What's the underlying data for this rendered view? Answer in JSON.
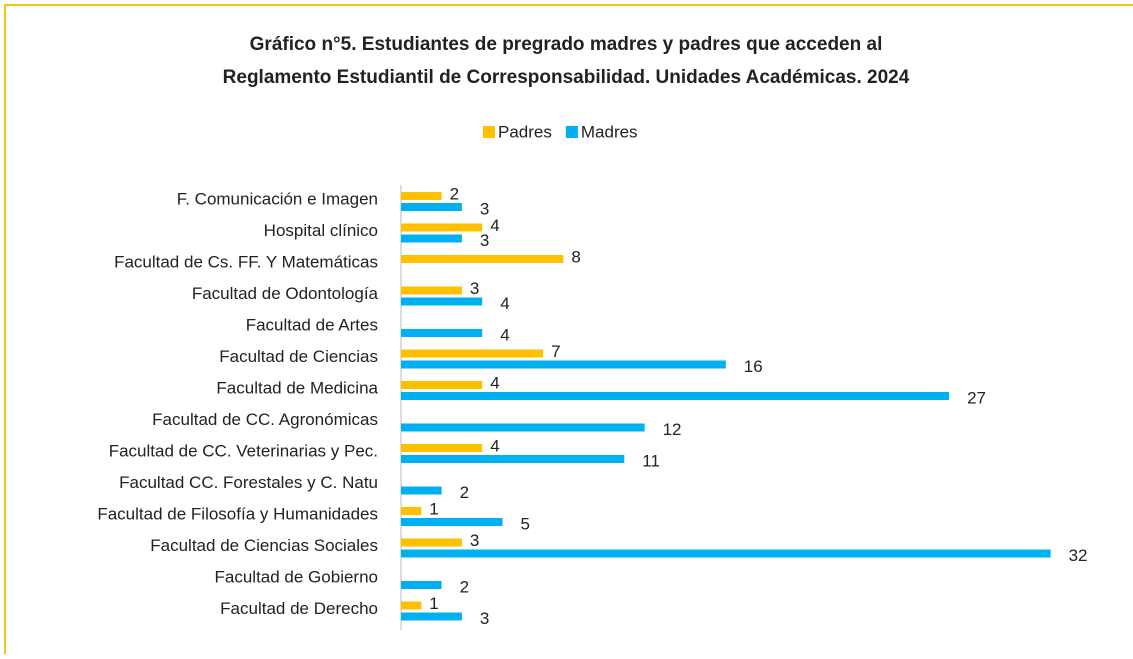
{
  "chart_data": {
    "type": "bar",
    "orientation": "horizontal",
    "title": [
      "Gráfico n°5. Estudiantes de pregrado madres y padres que acceden al",
      "Reglamento Estudiantil de Corresponsabilidad. Unidades Académicas. 2024"
    ],
    "categories": [
      "F. Comunicación e Imagen",
      "Hospital clínico",
      "Facultad de Cs. FF. Y Matemáticas",
      "Facultad de Odontología",
      "Facultad de Artes",
      "Facultad de Ciencias ",
      "Facultad de Medicina",
      "Facultad de CC. Agronómicas",
      "Facultad de CC. Veterinarias  y Pec.",
      "Facultad CC. Forestales y C. Natu",
      "Facultad de Filosofía y Humanidades",
      "Facultad de Ciencias Sociales",
      "Facultad de Gobierno",
      "Facultad de Derecho"
    ],
    "series": [
      {
        "name": "Padres",
        "color": "#ffc000",
        "values": [
          2,
          4,
          8,
          3,
          null,
          7,
          4,
          null,
          4,
          null,
          1,
          3,
          null,
          1
        ]
      },
      {
        "name": "Madres",
        "color": "#00b0f0",
        "values": [
          3,
          3,
          null,
          4,
          4,
          16,
          27,
          12,
          11,
          2,
          5,
          32,
          2,
          3
        ]
      }
    ],
    "legend": "top"
  }
}
